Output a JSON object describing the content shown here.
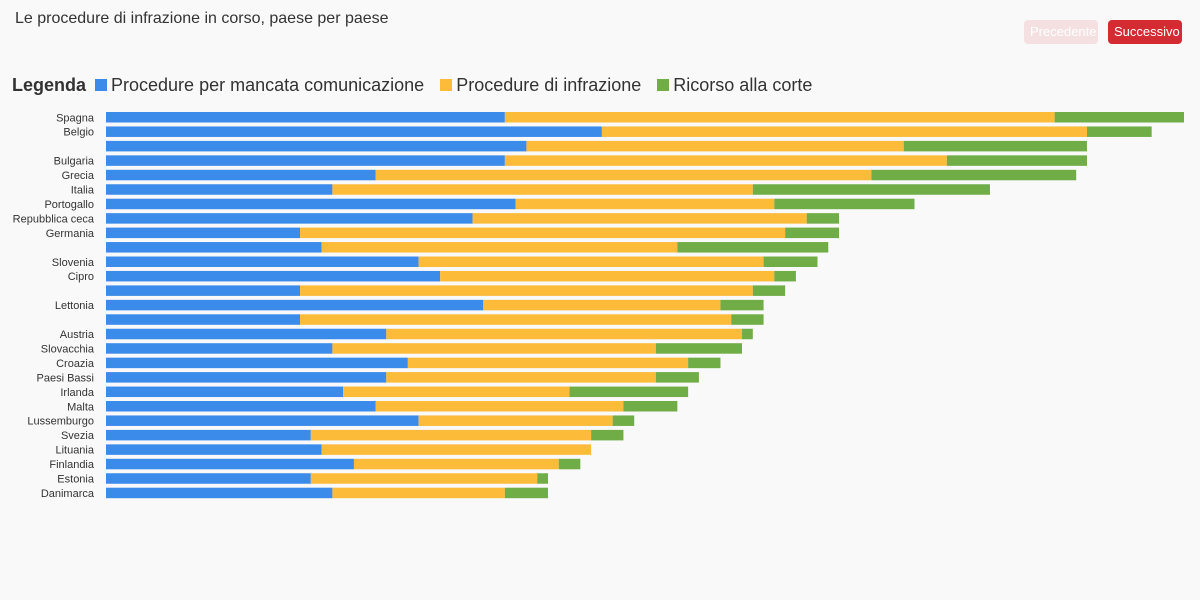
{
  "header": {
    "title": "Le procedure di infrazione in corso, paese per paese",
    "prev_label": "Precedente",
    "next_label": "Successivo"
  },
  "legend": {
    "title": "Legenda",
    "items": [
      {
        "label": "Procedure per mancata comunicazione",
        "color": "#3b8beb"
      },
      {
        "label": "Procedure di infrazione",
        "color": "#fdbb3a"
      },
      {
        "label": "Ricorso alla corte",
        "color": "#71ad47"
      }
    ]
  },
  "chart_data": {
    "type": "bar",
    "orientation": "horizontal",
    "stacked": true,
    "categories": [
      "Spagna",
      "Belgio",
      "",
      "Bulgaria",
      "Grecia",
      "Italia",
      "Portogallo",
      "Repubblica ceca",
      "Germania",
      "",
      "Slovenia",
      "Cipro",
      "",
      "Lettonia",
      "",
      "Austria",
      "Slovacchia",
      "Croazia",
      "Paesi Bassi",
      "Irlanda",
      "Malta",
      "Lussemburgo",
      "Svezia",
      "Lituania",
      "Finlandia",
      "Estonia",
      "Danimarca"
    ],
    "series": [
      {
        "name": "Procedure per mancata comunicazione",
        "color": "#3b8beb",
        "values": [
          37,
          46,
          39,
          37,
          25,
          21,
          38,
          34,
          18,
          20,
          29,
          31,
          18,
          35,
          18,
          26,
          21,
          28,
          26,
          22,
          25,
          29,
          19,
          20,
          23,
          19,
          21
        ]
      },
      {
        "name": "Procedure di infrazione",
        "color": "#fdbb3a",
        "values": [
          51,
          45,
          35,
          41,
          46,
          39,
          24,
          31,
          45,
          33,
          32,
          31,
          42,
          22,
          40,
          33,
          30,
          26,
          25,
          21,
          23,
          18,
          26,
          25,
          19,
          21,
          16
        ]
      },
      {
        "name": "Ricorso alla corte",
        "color": "#71ad47",
        "values": [
          12,
          6,
          17,
          13,
          19,
          22,
          13,
          3,
          5,
          14,
          5,
          2,
          3,
          4,
          3,
          1,
          8,
          3,
          4,
          11,
          5,
          2,
          3,
          0,
          2,
          1,
          4
        ]
      }
    ],
    "xlim": [
      0,
      100
    ],
    "grid": false,
    "legend_position": "top-left"
  }
}
